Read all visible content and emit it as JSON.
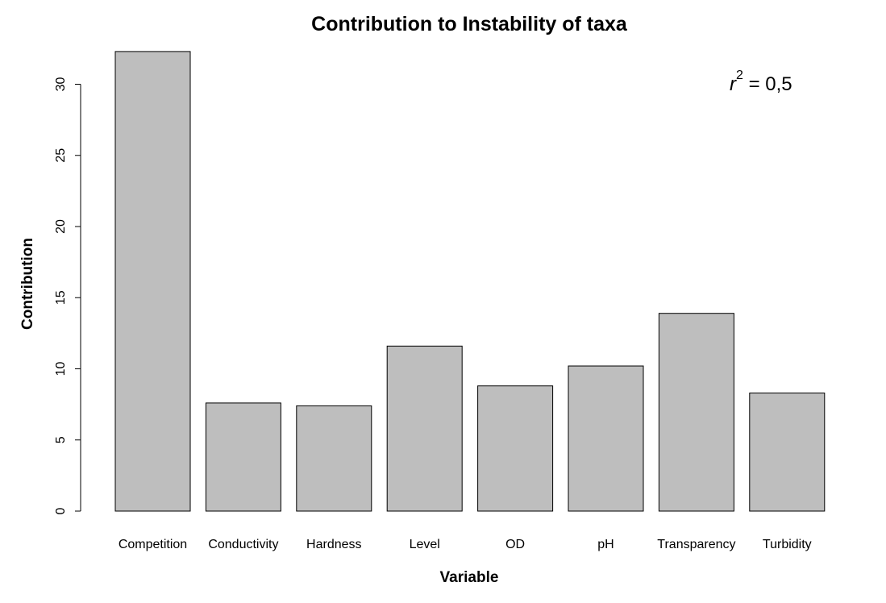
{
  "chart_data": {
    "type": "bar",
    "title": "Contribution to Instability of taxa",
    "xlabel": "Variable",
    "ylabel": "Contribution",
    "categories": [
      "Competition",
      "Conductivity",
      "Hardness",
      "Level",
      "OD",
      "pH",
      "Transparency",
      "Turbidity"
    ],
    "values": [
      32.3,
      7.6,
      7.4,
      11.6,
      8.8,
      10.2,
      13.9,
      8.3
    ],
    "yticks": [
      0,
      5,
      10,
      15,
      20,
      25,
      30
    ],
    "ylim": [
      0,
      32.3
    ],
    "grid": false,
    "bar_color": "#bebebe",
    "annotation": {
      "base": "r",
      "exponent": "2",
      "rest": " = 0,5"
    }
  }
}
